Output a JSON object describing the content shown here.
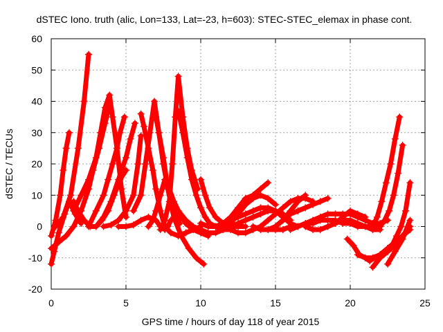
{
  "chart_data": {
    "type": "scatter",
    "title": "dSTEC Iono. truth (alic, Lon=133, Lat=-23, h=603): STEC-STEC_elemax in phase cont.",
    "xlabel": "GPS time / hours of day 118 of year 2015",
    "ylabel": "dSTEC  / TECUs",
    "xlim": [
      0,
      25
    ],
    "ylim": [
      -20,
      60
    ],
    "xticks": [
      0,
      5,
      10,
      15,
      20,
      25
    ],
    "yticks": [
      -20,
      -10,
      0,
      10,
      20,
      30,
      40,
      50,
      60
    ],
    "grid": true,
    "marker": "+",
    "series_color": "#ff0000",
    "series": [
      {
        "x": [
          0.0,
          0.3,
          0.6,
          0.8,
          1.0,
          1.2
        ],
        "y": [
          -3,
          2,
          10,
          18,
          25,
          30
        ]
      },
      {
        "x": [
          0.0,
          0.2,
          0.5,
          0.9,
          1.2,
          1.6,
          2.0
        ],
        "y": [
          -12,
          -8,
          -2,
          4,
          8,
          4,
          1
        ]
      },
      {
        "x": [
          0.3,
          0.8,
          1.3,
          1.8,
          2.2,
          2.5
        ],
        "y": [
          0,
          3,
          10,
          25,
          40,
          55
        ]
      },
      {
        "x": [
          1.5,
          2.0,
          2.5,
          3.0,
          3.3,
          3.6,
          3.9,
          4.1,
          4.4,
          4.7,
          5.0
        ],
        "y": [
          5,
          10,
          15,
          22,
          30,
          38,
          42,
          35,
          25,
          12,
          3
        ]
      },
      {
        "x": [
          1.5,
          1.8,
          2.2,
          2.6,
          3.0,
          3.4,
          3.8,
          4.2,
          4.6,
          5.0
        ],
        "y": [
          8,
          5,
          2,
          0,
          0,
          2,
          5,
          10,
          15,
          18
        ]
      },
      {
        "x": [
          0.0,
          0.5,
          1.0,
          1.5,
          2.0,
          2.5,
          2.8,
          3.2,
          3.6,
          3.9
        ],
        "y": [
          -7,
          -5,
          -3,
          0,
          5,
          12,
          18,
          25,
          33,
          39
        ]
      },
      {
        "x": [
          2.5,
          3.0,
          3.5,
          3.8,
          4.1,
          4.4,
          4.6,
          4.9
        ],
        "y": [
          0,
          5,
          10,
          15,
          20,
          25,
          30,
          35
        ]
      },
      {
        "x": [
          3.0,
          3.5,
          4.0,
          4.5,
          5.0,
          5.3,
          5.6
        ],
        "y": [
          0,
          3,
          8,
          15,
          22,
          28,
          33
        ]
      },
      {
        "x": [
          3.5,
          4.0,
          4.5,
          5.0,
          5.5,
          5.8,
          6.0
        ],
        "y": [
          0,
          0.5,
          2,
          5,
          10,
          20,
          29
        ]
      },
      {
        "x": [
          4.5,
          5.0,
          5.5,
          6.0,
          6.5,
          7.0,
          7.3,
          7.6,
          7.8,
          8.0
        ],
        "y": [
          0,
          0,
          0.5,
          2,
          3,
          2,
          0,
          -1,
          0,
          2
        ]
      },
      {
        "x": [
          5.5,
          6.0,
          6.3,
          6.6,
          6.9,
          7.2,
          7.5,
          7.8,
          8.2,
          8.6
        ],
        "y": [
          5,
          10,
          20,
          30,
          40,
          30,
          20,
          12,
          5,
          1
        ]
      },
      {
        "x": [
          6.0,
          6.2,
          6.5,
          6.8,
          7.0,
          7.3,
          7.6,
          8.0,
          8.5,
          9.0,
          9.5,
          10.0
        ],
        "y": [
          36,
          32,
          25,
          18,
          12,
          5,
          0,
          -2,
          -3,
          -2,
          -1,
          0
        ]
      },
      {
        "x": [
          7.0,
          7.2,
          7.5,
          7.8,
          8.2,
          8.7,
          9.2,
          9.7,
          10.2
        ],
        "y": [
          35,
          30,
          22,
          12,
          3,
          -3,
          -7,
          -10,
          -12
        ]
      },
      {
        "x": [
          6.5,
          6.8,
          7.0,
          7.3,
          7.6,
          7.9,
          8.2,
          8.6,
          9.0,
          9.5,
          10.0,
          10.5
        ],
        "y": [
          0,
          2,
          5,
          10,
          15,
          12,
          8,
          4,
          1,
          -1,
          -2,
          -3
        ]
      },
      {
        "x": [
          7.3,
          7.6,
          7.9,
          8.1,
          8.3,
          8.5,
          8.8,
          9.1,
          9.4,
          9.8
        ],
        "y": [
          -1,
          2,
          8,
          20,
          35,
          48,
          35,
          25,
          18,
          12
        ]
      },
      {
        "x": [
          8.5,
          8.8,
          9.1,
          9.4,
          9.7,
          10.0,
          10.3,
          10.6,
          11.0,
          11.5,
          12.0
        ],
        "y": [
          37,
          30,
          22,
          15,
          10,
          6,
          3,
          1,
          0,
          -1,
          -1
        ]
      },
      {
        "x": [
          10.0,
          10.3,
          10.6,
          11.0,
          11.5,
          12.0,
          12.5,
          13.0
        ],
        "y": [
          15,
          10,
          6,
          3,
          1,
          0,
          0,
          0
        ]
      },
      {
        "x": [
          8.0,
          8.5,
          9.0,
          9.5,
          10.0,
          10.5,
          11.0,
          11.5,
          12.0,
          12.5,
          13.0,
          13.5,
          14.0,
          14.5,
          15.0,
          15.5,
          16.0
        ],
        "y": [
          10,
          5,
          2,
          0,
          -1,
          -2,
          -2,
          -1,
          0,
          1,
          2,
          3,
          4,
          5,
          5,
          4,
          2
        ]
      },
      {
        "x": [
          10.0,
          10.5,
          11.0,
          11.5,
          12.0,
          12.5,
          13.0,
          13.5,
          14.0,
          14.5,
          15.0,
          15.5,
          16.0,
          16.5
        ],
        "y": [
          1,
          0,
          0,
          1,
          2,
          3,
          4,
          5,
          6,
          6,
          5,
          3,
          1,
          0
        ]
      },
      {
        "x": [
          11.0,
          11.5,
          12.0,
          12.5,
          13.0,
          13.5,
          14.0,
          14.5
        ],
        "y": [
          0,
          1,
          3,
          6,
          9,
          10,
          12,
          14
        ]
      },
      {
        "x": [
          11.5,
          12.0,
          12.5,
          13.0,
          13.5,
          14.0,
          14.5,
          15.0
        ],
        "y": [
          -1,
          1,
          4,
          7,
          9,
          10,
          9,
          7
        ]
      },
      {
        "x": [
          12.0,
          12.5,
          13.0,
          13.5,
          14.0,
          14.5,
          15.0,
          15.5,
          16.0,
          16.5,
          17.0,
          17.5
        ],
        "y": [
          -1,
          -2,
          -2,
          -1,
          0,
          2,
          4,
          6,
          8,
          9,
          9,
          8
        ]
      },
      {
        "x": [
          13.5,
          14.0,
          14.5,
          15.0,
          15.5,
          16.0,
          16.5,
          17.0
        ],
        "y": [
          0,
          -1,
          -1,
          0,
          2,
          5,
          8,
          10
        ]
      },
      {
        "x": [
          14.5,
          15.0,
          15.5,
          16.0,
          16.5,
          17.0,
          17.5,
          18.0,
          18.5,
          19.0,
          19.5,
          20.0,
          20.5,
          21.0,
          21.5,
          22.0
        ],
        "y": [
          -1,
          -1,
          -1,
          0,
          0,
          1,
          1,
          2,
          2,
          2,
          1,
          1,
          0,
          0,
          0,
          1
        ]
      },
      {
        "x": [
          15.0,
          15.5,
          16.0,
          16.5,
          17.0,
          17.5,
          18.0,
          18.5
        ],
        "y": [
          0,
          2,
          4,
          5,
          6,
          7,
          8,
          9
        ]
      },
      {
        "x": [
          16.0,
          16.5,
          17.0,
          17.5,
          18.0,
          18.5,
          19.0,
          19.5,
          20.0,
          20.5,
          21.0,
          21.5,
          22.0,
          22.5
        ],
        "y": [
          -1,
          0,
          1,
          2,
          3,
          4,
          4,
          4,
          4,
          3,
          2,
          1,
          1,
          2
        ]
      },
      {
        "x": [
          17.0,
          17.5,
          18.0,
          18.5,
          19.0,
          19.5,
          20.0,
          20.5,
          21.0
        ],
        "y": [
          0,
          -1,
          -1,
          0,
          1,
          3,
          5,
          4,
          3
        ]
      },
      {
        "x": [
          18.5,
          19.0,
          19.5,
          20.0,
          20.5,
          21.0,
          21.5,
          22.0
        ],
        "y": [
          0,
          1,
          2,
          2,
          1,
          0,
          -1,
          -1
        ]
      },
      {
        "x": [
          19.8,
          20.2,
          20.6,
          21.0,
          21.3,
          21.6,
          22.0,
          22.5,
          23.0
        ],
        "y": [
          -4,
          -6,
          -9,
          -10,
          -11,
          -10,
          -9,
          -7,
          -5
        ]
      },
      {
        "x": [
          20.5,
          21.0,
          21.5,
          22.0,
          22.5,
          23.0,
          23.5,
          24.0
        ],
        "y": [
          -9,
          -10,
          -10,
          -9,
          -7,
          -5,
          -3,
          -1
        ]
      },
      {
        "x": [
          21.5,
          22.0,
          22.5,
          23.0,
          23.5,
          24.0
        ],
        "y": [
          -13,
          -10,
          -8,
          -6,
          -3,
          0
        ]
      },
      {
        "x": [
          21.5,
          21.8,
          22.1,
          22.4,
          22.7,
          23.0,
          23.3
        ],
        "y": [
          0,
          3,
          8,
          14,
          20,
          28,
          35
        ]
      },
      {
        "x": [
          22.0,
          22.3,
          22.6,
          22.9,
          23.2,
          23.5
        ],
        "y": [
          0,
          2,
          5,
          10,
          17,
          26
        ]
      },
      {
        "x": [
          22.5,
          22.8,
          23.1,
          23.4,
          23.7,
          24.0
        ],
        "y": [
          -8,
          -6,
          -3,
          0,
          5,
          14
        ]
      },
      {
        "x": [
          22.5,
          23.0,
          23.5,
          24.0
        ],
        "y": [
          -12,
          -8,
          -4,
          2
        ]
      }
    ]
  }
}
